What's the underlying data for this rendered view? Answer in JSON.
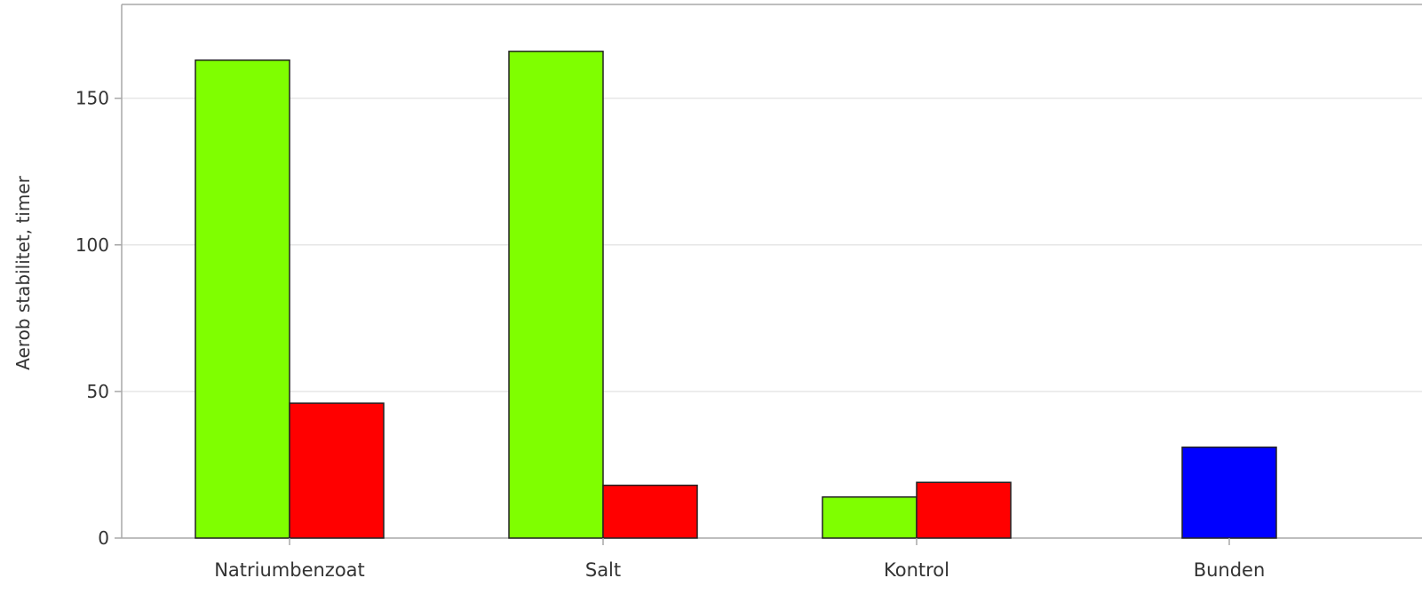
{
  "chart_data": {
    "type": "bar",
    "ylabel": "Aerob stabilitet, timer",
    "xlabel": "",
    "ylim": [
      0,
      182
    ],
    "yticks": [
      0,
      50,
      100,
      150
    ],
    "grid": true,
    "categories": [
      "Natriumbenzoat",
      "Salt",
      "Kontrol",
      "Bunden"
    ],
    "bars": [
      {
        "category": "Natriumbenzoat",
        "slot": 0,
        "value": 163,
        "color": "#7fff00"
      },
      {
        "category": "Natriumbenzoat",
        "slot": 1,
        "value": 46,
        "color": "#ff0000"
      },
      {
        "category": "Salt",
        "slot": 0,
        "value": 166,
        "color": "#7fff00"
      },
      {
        "category": "Salt",
        "slot": 1,
        "value": 18,
        "color": "#ff0000"
      },
      {
        "category": "Kontrol",
        "slot": 0,
        "value": 14,
        "color": "#7fff00"
      },
      {
        "category": "Kontrol",
        "slot": 1,
        "value": 19,
        "color": "#ff0000"
      },
      {
        "category": "Bunden",
        "slot": "center",
        "value": 31,
        "color": "#0000ff"
      }
    ]
  }
}
